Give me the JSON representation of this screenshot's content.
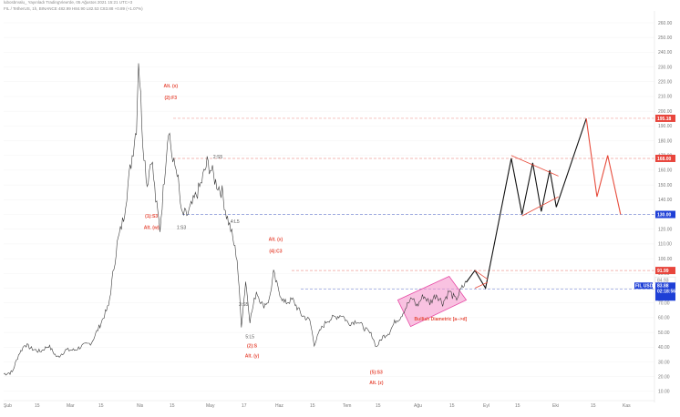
{
  "header": {
    "line1": "lubosbrvalu_ Yayınladı TradingView'de, 05 Ağustos 2021 15:21 UTC+3",
    "line2": "FIL / TetherUS, 1h, BINANCE  482.99  H84.90  L82.53  C83.88  +0.89 (+1.07%)"
  },
  "colors": {
    "price": "#3a3a3a",
    "wave_red": "#e74c3c",
    "dash_red": "#f0a09a",
    "dash_blue": "#7f8fd6",
    "label_red": "#e8453c",
    "label_blue": "#1e3fd6",
    "diamond_fill": "#f48fc8",
    "diamond_stroke": "#e64aa5"
  },
  "chart_data": {
    "type": "line",
    "title": "",
    "x_ticks": [
      "Şub",
      "15",
      "Mar",
      "15",
      "Nis",
      "15",
      "May",
      "17",
      "Haz",
      "15",
      "Tem",
      "15",
      "Ağu",
      "15",
      "Eyl",
      "15",
      "Eki",
      "15",
      "Kas"
    ],
    "y_ticks": [
      10,
      20,
      30,
      40,
      50,
      60,
      70,
      80,
      90,
      100,
      110,
      120,
      130,
      140,
      150,
      160,
      170,
      180,
      190,
      200,
      210,
      220,
      230,
      240,
      250,
      260
    ],
    "ylim": [
      5,
      268
    ],
    "price_series": {
      "name": "FIL / TetherUS",
      "points": [
        [
          "2021-01-28",
          22
        ],
        [
          "2021-02-01",
          23
        ],
        [
          "2021-02-04",
          35
        ],
        [
          "2021-02-07",
          42
        ],
        [
          "2021-02-10",
          39
        ],
        [
          "2021-02-14",
          37
        ],
        [
          "2021-02-18",
          41
        ],
        [
          "2021-02-22",
          33
        ],
        [
          "2021-02-26",
          38
        ],
        [
          "2021-03-02",
          38
        ],
        [
          "2021-03-06",
          41
        ],
        [
          "2021-03-10",
          43
        ],
        [
          "2021-03-14",
          55
        ],
        [
          "2021-03-18",
          68
        ],
        [
          "2021-03-22",
          110
        ],
        [
          "2021-03-25",
          128
        ],
        [
          "2021-03-28",
          160
        ],
        [
          "2021-03-31",
          190
        ],
        [
          "2021-04-01",
          237
        ],
        [
          "2021-04-03",
          180
        ],
        [
          "2021-04-05",
          150
        ],
        [
          "2021-04-07",
          170
        ],
        [
          "2021-04-09",
          140
        ],
        [
          "2021-04-11",
          120
        ],
        [
          "2021-04-13",
          155
        ],
        [
          "2021-04-15",
          190
        ],
        [
          "2021-04-17",
          165
        ],
        [
          "2021-04-19",
          160
        ],
        [
          "2021-04-21",
          130
        ],
        [
          "2021-04-24",
          130
        ],
        [
          "2021-04-27",
          140
        ],
        [
          "2021-04-30",
          150
        ],
        [
          "2021-05-03",
          165
        ],
        [
          "2021-05-05",
          160
        ],
        [
          "2021-05-07",
          152
        ],
        [
          "2021-05-10",
          145
        ],
        [
          "2021-05-12",
          130
        ],
        [
          "2021-05-14",
          120
        ],
        [
          "2021-05-17",
          100
        ],
        [
          "2021-05-19",
          55
        ],
        [
          "2021-05-21",
          85
        ],
        [
          "2021-05-23",
          58
        ],
        [
          "2021-05-26",
          78
        ],
        [
          "2021-05-29",
          68
        ],
        [
          "2021-06-01",
          72
        ],
        [
          "2021-06-03",
          90
        ],
        [
          "2021-06-05",
          80
        ],
        [
          "2021-06-08",
          70
        ],
        [
          "2021-06-12",
          72
        ],
        [
          "2021-06-16",
          62
        ],
        [
          "2021-06-20",
          58
        ],
        [
          "2021-06-22",
          42
        ],
        [
          "2021-06-25",
          52
        ],
        [
          "2021-06-28",
          58
        ],
        [
          "2021-07-01",
          60
        ],
        [
          "2021-07-05",
          62
        ],
        [
          "2021-07-08",
          56
        ],
        [
          "2021-07-12",
          58
        ],
        [
          "2021-07-16",
          52
        ],
        [
          "2021-07-19",
          48
        ],
        [
          "2021-07-21",
          40
        ],
        [
          "2021-07-24",
          47
        ],
        [
          "2021-07-27",
          50
        ],
        [
          "2021-07-30",
          58
        ],
        [
          "2021-08-01",
          60
        ],
        [
          "2021-08-03",
          65
        ],
        [
          "2021-08-05",
          70
        ],
        [
          "2021-08-07",
          73
        ],
        [
          "2021-08-09",
          68
        ],
        [
          "2021-08-12",
          75
        ],
        [
          "2021-08-15",
          70
        ],
        [
          "2021-08-18",
          76
        ],
        [
          "2021-08-21",
          70
        ],
        [
          "2021-08-24",
          78
        ],
        [
          "2021-08-27",
          72
        ],
        [
          "2021-08-30",
          80
        ],
        [
          "2021-09-01",
          84
        ]
      ]
    },
    "projection_black": {
      "points": [
        [
          "2021-09-01",
          84
        ],
        [
          "2021-09-05",
          92
        ],
        [
          "2021-09-10",
          80
        ],
        [
          "2021-09-22",
          168
        ],
        [
          "2021-09-27",
          130
        ],
        [
          "2021-10-02",
          165
        ],
        [
          "2021-10-06",
          132
        ],
        [
          "2021-10-10",
          160
        ],
        [
          "2021-10-13",
          135
        ],
        [
          "2021-10-27",
          195
        ]
      ]
    },
    "projection_red": {
      "points": [
        [
          "2021-10-27",
          195
        ],
        [
          "2021-11-01",
          142
        ],
        [
          "2021-11-06",
          170
        ],
        [
          "2021-11-12",
          130
        ]
      ]
    },
    "level_lines": [
      {
        "price": 195.18,
        "style": "red",
        "label": "195.18"
      },
      {
        "price": 168.0,
        "style": "red",
        "label": "168.00"
      },
      {
        "price": 130.0,
        "style": "blue",
        "label": "130.00"
      },
      {
        "price": 91.99,
        "style": "red",
        "label": "91.99"
      },
      {
        "price": 79.5,
        "style": "blue",
        "label": ""
      }
    ],
    "right_labels": [
      {
        "price": 85.2,
        "lines": [
          "84.93"
        ],
        "style": "plain"
      },
      {
        "price": 82.0,
        "lines": [
          "FIL USDT",
          "83.88",
          "02:18:56"
        ],
        "style": "blue"
      }
    ],
    "annotations": [
      {
        "text": "Alt. (x)",
        "color": "red",
        "date": "2021-04-16",
        "price": 216
      },
      {
        "text": "(2):F3",
        "color": "red",
        "date": "2021-04-16",
        "price": 208
      },
      {
        "text": "(1):S3",
        "color": "red",
        "date": "2021-04-07",
        "price": 128
      },
      {
        "text": "Alt. (w)",
        "color": "red",
        "date": "2021-04-07",
        "price": 120
      },
      {
        "text": "2:S5",
        "color": "grey",
        "date": "2021-05-08",
        "price": 168
      },
      {
        "text": "1:S3",
        "color": "grey",
        "date": "2021-04-21",
        "price": 120
      },
      {
        "text": "4:L5",
        "color": "grey",
        "date": "2021-05-16",
        "price": 124
      },
      {
        "text": "3:S5",
        "color": "grey",
        "date": "2021-05-20",
        "price": 68
      },
      {
        "text": "5:L5",
        "color": "grey",
        "date": "2021-05-23",
        "price": 46
      },
      {
        "text": "(2):S",
        "color": "red",
        "date": "2021-05-24",
        "price": 40
      },
      {
        "text": "Alt. (y)",
        "color": "red",
        "date": "2021-05-24",
        "price": 33
      },
      {
        "text": "Alt. (x)",
        "color": "red",
        "date": "2021-06-04",
        "price": 112
      },
      {
        "text": "(4):C3",
        "color": "red",
        "date": "2021-06-04",
        "price": 104
      },
      {
        "text": "(5):S3",
        "color": "red",
        "date": "2021-07-21",
        "price": 22
      },
      {
        "text": "Alt. (z)",
        "color": "red",
        "date": "2021-07-21",
        "price": 15
      },
      {
        "text": "Bullish Diametric [a-->d]",
        "color": "red",
        "date": "2021-08-20",
        "price": 58
      }
    ],
    "diamond": {
      "corners": [
        [
          "2021-07-31",
          72
        ],
        [
          "2021-08-24",
          88
        ],
        [
          "2021-09-01",
          72
        ],
        [
          "2021-08-06",
          54
        ]
      ]
    }
  }
}
